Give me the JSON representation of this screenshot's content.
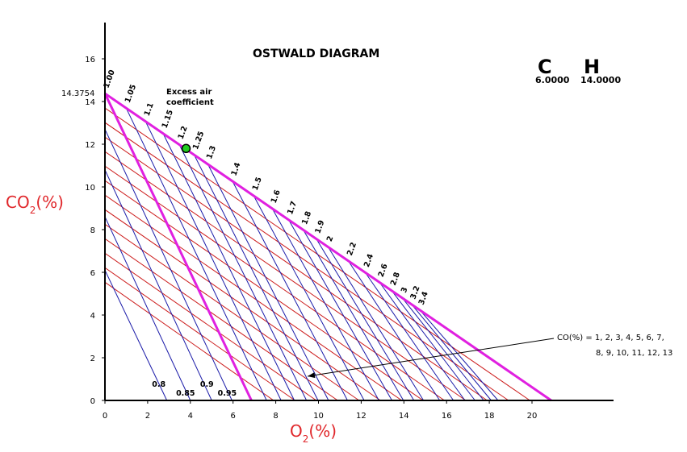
{
  "chart_data": {
    "type": "line",
    "title": "OSTWALD DIAGRAM",
    "xlabel": "O",
    "xlabel_sub": "2",
    "xlabel_unit": "(%)",
    "ylabel": "CO",
    "ylabel_sub": "2",
    "ylabel_unit": "(%)",
    "xlim": [
      0,
      23.5
    ],
    "ylim": [
      0,
      17.7
    ],
    "x_ticks": [
      "0",
      "2",
      "4",
      "6",
      "8",
      "10",
      "12",
      "14",
      "16",
      "18",
      "20"
    ],
    "y_ticks": [
      "0",
      "2",
      "4",
      "6",
      "8",
      "10",
      "12",
      "14",
      "16"
    ],
    "max_co2": 14.3754,
    "max_co2_label": "14.3754",
    "max_o2": 20.9,
    "fuel": {
      "c_symbol": "C",
      "c_value": "6.0000",
      "h_symbol": "H",
      "h_value": "14.0000"
    },
    "excess_air_label": [
      "Excess air",
      "coefficient"
    ],
    "complete_combustion_line": {
      "x": [
        0,
        20.9
      ],
      "y": [
        14.3754,
        0
      ],
      "color": "#e020e0"
    },
    "co_zero_line": {
      "x": [
        0,
        6.86
      ],
      "y": [
        14.3754,
        0
      ],
      "color": "#e020e0"
    },
    "excess_air_coefficients": [
      {
        "value": 0.8,
        "label": "0.8",
        "o2_intercept": 2.9,
        "co2_intercept": 6.1
      },
      {
        "value": 0.85,
        "label": "0.85",
        "o2_intercept": 4.0,
        "co2_intercept": 8.6
      },
      {
        "value": 0.9,
        "label": "0.9",
        "o2_intercept": 5.0,
        "co2_intercept": 10.8
      },
      {
        "value": 0.95,
        "label": "0.95",
        "o2_intercept": 5.95,
        "co2_intercept": 12.7
      },
      {
        "value": 1.0,
        "label": "1.00",
        "o2_intercept": 6.86
      },
      {
        "value": 1.05,
        "label": "1.05",
        "o2_intercept": 7.57
      },
      {
        "value": 1.1,
        "label": "1.1",
        "o2_intercept": 8.25
      },
      {
        "value": 1.15,
        "label": "1.15",
        "o2_intercept": 8.87
      },
      {
        "value": 1.2,
        "label": "1.2",
        "o2_intercept": 9.44
      },
      {
        "value": 1.25,
        "label": "1.25",
        "o2_intercept": 9.98
      },
      {
        "value": 1.3,
        "label": "1.3",
        "o2_intercept": 10.47
      },
      {
        "value": 1.4,
        "label": "1.4",
        "o2_intercept": 11.36
      },
      {
        "value": 1.5,
        "label": "1.5",
        "o2_intercept": 12.14
      },
      {
        "value": 1.6,
        "label": "1.6",
        "o2_intercept": 12.83
      },
      {
        "value": 1.7,
        "label": "1.7",
        "o2_intercept": 13.44
      },
      {
        "value": 1.8,
        "label": "1.8",
        "o2_intercept": 13.98
      },
      {
        "value": 1.9,
        "label": "1.9",
        "o2_intercept": 14.47
      },
      {
        "value": 2.0,
        "label": "2",
        "o2_intercept": 14.92
      },
      {
        "value": 2.2,
        "label": "2.2",
        "o2_intercept": 15.68
      },
      {
        "value": 2.4,
        "label": "2.4",
        "o2_intercept": 16.32
      },
      {
        "value": 2.6,
        "label": "2.6",
        "o2_intercept": 16.86
      },
      {
        "value": 2.8,
        "label": "2.8",
        "o2_intercept": 17.33
      },
      {
        "value": 3.0,
        "label": "3",
        "o2_intercept": 17.74
      },
      {
        "value": 3.2,
        "label": "3.2",
        "o2_intercept": 18.09
      },
      {
        "value": 3.4,
        "label": "3.4",
        "o2_intercept": 18.41
      }
    ],
    "co_lines": {
      "label_line1": "CO(%) = 1, 2, 3, 4, 5, 6, 7,",
      "label_line2": "8, 9, 10, 11, 12, 13",
      "values": [
        1,
        2,
        3,
        4,
        5,
        6,
        7,
        8,
        9,
        10,
        11,
        12,
        13
      ],
      "co2_offset_per_unit": 0.68,
      "o2_offset_per_unit": 0.5
    },
    "marked_point": {
      "x": 3.8,
      "y": 11.8,
      "color": "#22cc22"
    },
    "colors": {
      "axes": "#000000",
      "co_lines": "#cc1a1a",
      "coef_lines": "#1a1aa8",
      "boundary": "#e020e0",
      "axis_labels": "#e0262a"
    }
  }
}
